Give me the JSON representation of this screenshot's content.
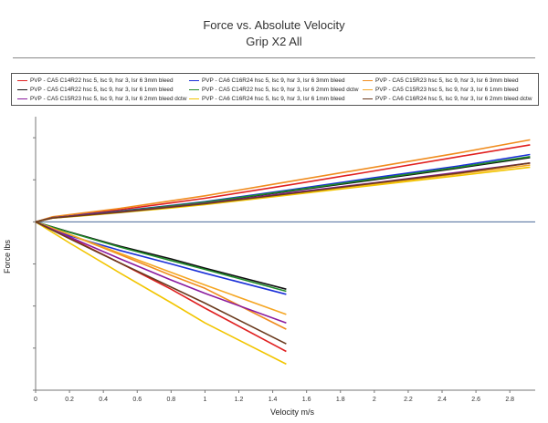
{
  "titles": {
    "main": "Force vs. Absolute Velocity",
    "sub": "Grip X2 All"
  },
  "legend": [
    {
      "name": "PVP - CA5 C14R22 hsc 5, lsc 9, hsr 3, lsr 6 3mm bleed",
      "color": "#e02020"
    },
    {
      "name": "PVP - CA6 C16R24 hsc 5, lsc 9, hsr 3, lsr 6 3mm bleed",
      "color": "#1a2fd8"
    },
    {
      "name": "PVP - CA5 C15R23 hsc 5, lsc 9, hsr 3, lsr 6 3mm bleed",
      "color": "#f08c1e"
    },
    {
      "name": "PVP - CA5 C14R22 hsc 5, lsc 9, hsr 3, lsr 6 1mm bleed",
      "color": "#111111"
    },
    {
      "name": "PVP - CA5 C14R22 hsc 5, lsc 9, hsr 3, lsr 6 2mm bleed dctw",
      "color": "#1f8a2a"
    },
    {
      "name": "PVP - CA5 C15R23 hsc 5, lsc 9, hsr 3, lsr 6 1mm bleed",
      "color": "#f5a623"
    },
    {
      "name": "PVP - CA5 C15R23 hsc 5, lsc 9, hsr 3, lsr 6 2mm bleed dctw",
      "color": "#8a1a9e"
    },
    {
      "name": "PVP - CA6 C16R24 hsc 5, lsc 9, hsr 3, lsr 6 1mm bleed",
      "color": "#f2c500"
    },
    {
      "name": "PVP - CA6 C16R24 hsc 5, lsc 9, hsr 3, lsr 6 2mm bleed dctw",
      "color": "#6b3a1e"
    }
  ],
  "chart_data": {
    "type": "line",
    "title": "Force vs. Absolute Velocity",
    "subtitle": "Grip X2 All",
    "xlabel": "Velocity m/s",
    "ylabel": "Force lbs",
    "xlim": [
      0,
      2.95
    ],
    "ylim": [
      -4,
      2.5
    ],
    "x_ticks": [
      0,
      0.2,
      0.4,
      0.6,
      0.8,
      1,
      1.2,
      1.4,
      1.6,
      1.8,
      2,
      2.2,
      2.4,
      2.6,
      2.8
    ],
    "y_gridlines": false,
    "legend_position": "top",
    "series": [
      {
        "name": "PVP - CA5 C14R22 hsc 5, lsc 9, hsr 3, lsr 6 3mm bleed",
        "color": "#e02020",
        "rebound_x": [
          0,
          0.1,
          0.3,
          0.5,
          0.8,
          1.0,
          1.5,
          2.0,
          2.5,
          2.92
        ],
        "rebound_y": [
          0,
          0.11,
          0.2,
          0.29,
          0.45,
          0.56,
          0.88,
          1.21,
          1.55,
          1.83
        ],
        "comp_x": [
          0,
          0.2,
          0.5,
          0.8,
          1.0,
          1.48
        ],
        "comp_y": [
          0,
          -0.38,
          -0.98,
          -1.6,
          -2.05,
          -3.08
        ]
      },
      {
        "name": "PVP - CA6 C16R24 hsc 5, lsc 9, hsr 3, lsr 6 3mm bleed",
        "color": "#1a2fd8",
        "rebound_x": [
          0,
          0.1,
          0.3,
          0.5,
          0.8,
          1.0,
          1.5,
          2.0,
          2.5,
          2.92
        ],
        "rebound_y": [
          0,
          0.1,
          0.18,
          0.26,
          0.39,
          0.48,
          0.76,
          1.05,
          1.33,
          1.6
        ],
        "comp_x": [
          0,
          0.2,
          0.5,
          0.8,
          1.0,
          1.48
        ],
        "comp_y": [
          0,
          -0.33,
          -0.68,
          -1.0,
          -1.22,
          -1.72
        ]
      },
      {
        "name": "PVP - CA5 C15R23 hsc 5, lsc 9, hsr 3, lsr 6 3mm bleed",
        "color": "#f08c1e",
        "rebound_x": [
          0,
          0.1,
          0.3,
          0.5,
          0.8,
          1.0,
          1.5,
          2.0,
          2.5,
          2.92
        ],
        "rebound_y": [
          0,
          0.12,
          0.22,
          0.32,
          0.5,
          0.62,
          0.96,
          1.3,
          1.64,
          1.95
        ],
        "comp_x": [
          0,
          0.2,
          0.5,
          0.8,
          1.0,
          1.48
        ],
        "comp_y": [
          0,
          -0.3,
          -0.78,
          -1.27,
          -1.58,
          -2.55
        ]
      },
      {
        "name": "PVP - CA5 C14R22 hsc 5, lsc 9, hsr 3, lsr 6 1mm bleed",
        "color": "#111111",
        "rebound_x": [
          0,
          0.1,
          0.3,
          0.5,
          0.8,
          1.0,
          1.5,
          2.0,
          2.5,
          2.92
        ],
        "rebound_y": [
          0,
          0.1,
          0.17,
          0.25,
          0.37,
          0.46,
          0.73,
          1.0,
          1.28,
          1.53
        ],
        "comp_x": [
          0,
          0.2,
          0.5,
          0.8,
          1.0,
          1.48
        ],
        "comp_y": [
          0,
          -0.24,
          -0.58,
          -0.88,
          -1.1,
          -1.6
        ]
      },
      {
        "name": "PVP - CA5 C14R22 hsc 5, lsc 9, hsr 3, lsr 6 2mm bleed dctw",
        "color": "#1f8a2a",
        "rebound_x": [
          0,
          0.1,
          0.3,
          0.5,
          0.8,
          1.0,
          1.5,
          2.0,
          2.5,
          2.92
        ],
        "rebound_y": [
          0,
          0.1,
          0.17,
          0.25,
          0.38,
          0.47,
          0.74,
          1.02,
          1.3,
          1.55
        ],
        "comp_x": [
          0,
          0.2,
          0.5,
          0.8,
          1.0,
          1.48
        ],
        "comp_y": [
          0,
          -0.25,
          -0.6,
          -0.92,
          -1.13,
          -1.65
        ]
      },
      {
        "name": "PVP - CA5 C15R23 hsc 5, lsc 9, hsr 3, lsr 6 1mm bleed",
        "color": "#f5a623",
        "rebound_x": [
          0,
          0.1,
          0.3,
          0.5,
          0.8,
          1.0,
          1.5,
          2.0,
          2.5,
          2.92
        ],
        "rebound_y": [
          0,
          0.09,
          0.16,
          0.23,
          0.35,
          0.43,
          0.67,
          0.9,
          1.14,
          1.35
        ],
        "comp_x": [
          0,
          0.2,
          0.5,
          0.8,
          1.0,
          1.48
        ],
        "comp_y": [
          0,
          -0.3,
          -0.75,
          -1.2,
          -1.5,
          -2.2
        ]
      },
      {
        "name": "PVP - CA5 C15R23 hsc 5, lsc 9, hsr 3, lsr 6 2mm bleed dctw",
        "color": "#8a1a9e",
        "rebound_x": [
          0,
          0.1,
          0.3,
          0.5,
          0.8,
          1.0,
          1.5,
          2.0,
          2.5,
          2.92
        ],
        "rebound_y": [
          0,
          0.1,
          0.17,
          0.24,
          0.36,
          0.44,
          0.69,
          0.93,
          1.18,
          1.4
        ],
        "comp_x": [
          0,
          0.2,
          0.5,
          0.8,
          1.0,
          1.48
        ],
        "comp_y": [
          0,
          -0.36,
          -0.88,
          -1.38,
          -1.7,
          -2.4
        ]
      },
      {
        "name": "PVP - CA6 C16R24 hsc 5, lsc 9, hsr 3, lsr 6 1mm bleed",
        "color": "#f2c500",
        "rebound_x": [
          0,
          0.1,
          0.3,
          0.5,
          0.8,
          1.0,
          1.5,
          2.0,
          2.5,
          2.92
        ],
        "rebound_y": [
          0,
          0.09,
          0.15,
          0.22,
          0.33,
          0.41,
          0.64,
          0.87,
          1.1,
          1.3
        ],
        "comp_x": [
          0,
          0.2,
          0.5,
          0.8,
          1.0,
          1.48
        ],
        "comp_y": [
          0,
          -0.5,
          -1.22,
          -1.92,
          -2.4,
          -3.38
        ]
      },
      {
        "name": "PVP - CA6 C16R24 hsc 5, lsc 9, hsr 3, lsr 6 2mm bleed dctw",
        "color": "#6b3a1e",
        "rebound_x": [
          0,
          0.1,
          0.3,
          0.5,
          0.8,
          1.0,
          1.5,
          2.0,
          2.5,
          2.92
        ],
        "rebound_y": [
          0,
          0.09,
          0.16,
          0.23,
          0.35,
          0.43,
          0.67,
          0.92,
          1.16,
          1.4
        ],
        "comp_x": [
          0,
          0.2,
          0.5,
          0.8,
          1.0,
          1.48
        ],
        "comp_y": [
          0,
          -0.4,
          -0.98,
          -1.55,
          -1.93,
          -2.9
        ]
      }
    ]
  }
}
